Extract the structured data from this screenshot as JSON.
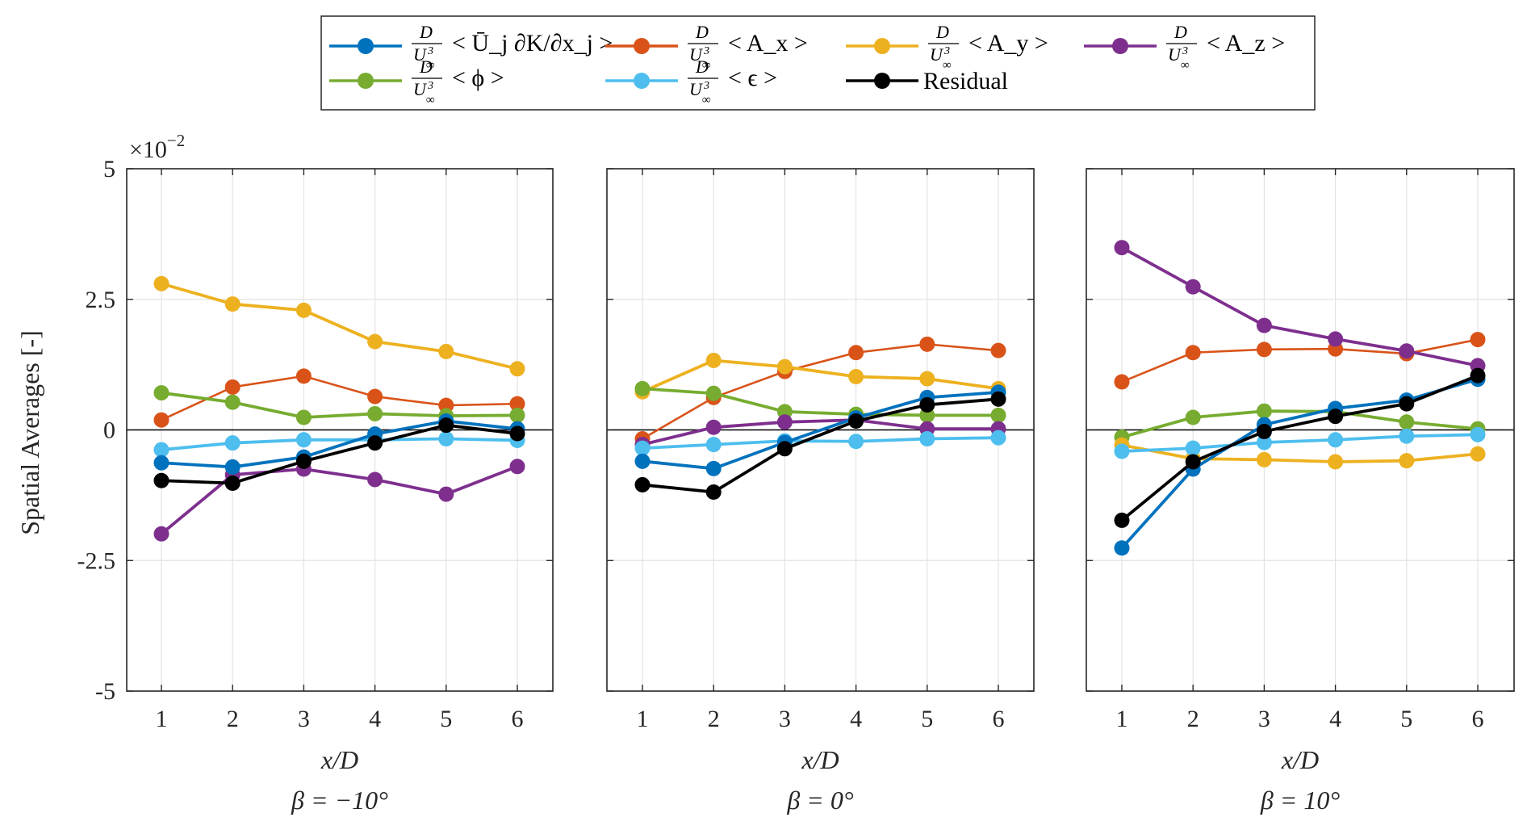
{
  "chart_data": {
    "type": "line",
    "ylabel": "Spatial Averages [-]",
    "y_multiplier": "×10",
    "y_multiplier_exponent": "−2",
    "ylim": [
      -5,
      5
    ],
    "yticks": [
      -5,
      -2.5,
      0,
      2.5,
      5
    ],
    "ytick_labels": [
      "-5",
      "-2.5",
      "0",
      "2.5",
      "5"
    ],
    "x": [
      1,
      2,
      3,
      4,
      5,
      6
    ],
    "xtick_labels": [
      "1",
      "2",
      "3",
      "4",
      "5",
      "6"
    ],
    "xlim": [
      0.4,
      6.6
    ],
    "grid": true,
    "legend_placement": "top-center",
    "legend": [
      {
        "key": "Uj",
        "prefix_num": "D",
        "prefix_den": "U",
        "den_sup": "3",
        "den_sub": "∞",
        "text": "< Ū_j ∂K/∂x_j >",
        "color": "#0072BD"
      },
      {
        "key": "Ax",
        "prefix_num": "D",
        "prefix_den": "U",
        "den_sup": "3",
        "den_sub": "∞",
        "text": "< A_x >",
        "color": "#D95319"
      },
      {
        "key": "Ay",
        "prefix_num": "D",
        "prefix_den": "U",
        "den_sup": "3",
        "den_sub": "∞",
        "text": "< A_y >",
        "color": "#EDB120"
      },
      {
        "key": "Az",
        "prefix_num": "D",
        "prefix_den": "U",
        "den_sup": "3",
        "den_sub": "∞",
        "text": "< A_z >",
        "color": "#7E2F8E"
      },
      {
        "key": "phi",
        "prefix_num": "D",
        "prefix_den": "U",
        "den_sup": "3",
        "den_sub": "∞",
        "text": "< ϕ >",
        "color": "#77AC30"
      },
      {
        "key": "eps",
        "prefix_num": "D",
        "prefix_den": "U",
        "den_sup": "3",
        "den_sub": "∞",
        "text": "< ϵ >",
        "color": "#4DBEEE"
      },
      {
        "key": "Residual",
        "text": "Residual",
        "color": "#000000"
      }
    ],
    "panels": [
      {
        "xlabel": "x/D",
        "subtitle": "β = −10°",
        "series": [
          {
            "name": "Ay",
            "values": [
              2.8,
              2.41,
              2.29,
              1.69,
              1.5,
              1.17
            ]
          },
          {
            "name": "Ax",
            "values": [
              0.19,
              0.82,
              1.03,
              0.64,
              0.47,
              0.5
            ]
          },
          {
            "name": "phi",
            "values": [
              0.71,
              0.53,
              0.24,
              0.31,
              0.27,
              0.28
            ]
          },
          {
            "name": "eps",
            "values": [
              -0.38,
              -0.25,
              -0.19,
              -0.19,
              -0.17,
              -0.2
            ]
          },
          {
            "name": "Az",
            "values": [
              -1.99,
              -0.86,
              -0.75,
              -0.95,
              -1.23,
              -0.7
            ]
          },
          {
            "name": "Uj",
            "values": [
              -0.63,
              -0.71,
              -0.52,
              -0.08,
              0.17,
              0.02
            ]
          },
          {
            "name": "Residual",
            "values": [
              -0.97,
              -1.02,
              -0.6,
              -0.25,
              0.09,
              -0.07
            ]
          }
        ]
      },
      {
        "xlabel": "x/D",
        "subtitle": "β = 0°",
        "series": [
          {
            "name": "Ax",
            "values": [
              -0.17,
              0.62,
              1.12,
              1.48,
              1.64,
              1.52
            ]
          },
          {
            "name": "Ay",
            "values": [
              0.73,
              1.33,
              1.21,
              1.02,
              0.98,
              0.79
            ]
          },
          {
            "name": "phi",
            "values": [
              0.79,
              0.7,
              0.35,
              0.3,
              0.28,
              0.28
            ]
          },
          {
            "name": "Az",
            "values": [
              -0.28,
              0.05,
              0.15,
              0.19,
              0.02,
              0.02
            ]
          },
          {
            "name": "eps",
            "values": [
              -0.35,
              -0.28,
              -0.21,
              -0.22,
              -0.17,
              -0.15
            ]
          },
          {
            "name": "Uj",
            "values": [
              -0.6,
              -0.74,
              -0.24,
              0.23,
              0.62,
              0.72
            ]
          },
          {
            "name": "Residual",
            "values": [
              -1.05,
              -1.19,
              -0.36,
              0.17,
              0.48,
              0.59
            ]
          }
        ]
      },
      {
        "xlabel": "x/D",
        "subtitle": "β = 10°",
        "series": [
          {
            "name": "Ax",
            "values": [
              0.92,
              1.48,
              1.54,
              1.55,
              1.46,
              1.73
            ]
          },
          {
            "name": "Az",
            "values": [
              3.49,
              2.74,
              2.0,
              1.74,
              1.51,
              1.23
            ]
          },
          {
            "name": "phi",
            "values": [
              -0.14,
              0.24,
              0.36,
              0.35,
              0.15,
              0.02
            ]
          },
          {
            "name": "Ay",
            "values": [
              -0.29,
              -0.55,
              -0.57,
              -0.61,
              -0.59,
              -0.46
            ]
          },
          {
            "name": "eps",
            "values": [
              -0.41,
              -0.35,
              -0.24,
              -0.19,
              -0.12,
              -0.09
            ]
          },
          {
            "name": "Uj",
            "values": [
              -2.26,
              -0.75,
              0.1,
              0.41,
              0.57,
              0.97
            ]
          },
          {
            "name": "Residual",
            "values": [
              -1.73,
              -0.61,
              -0.03,
              0.26,
              0.5,
              1.04
            ]
          }
        ]
      }
    ]
  }
}
